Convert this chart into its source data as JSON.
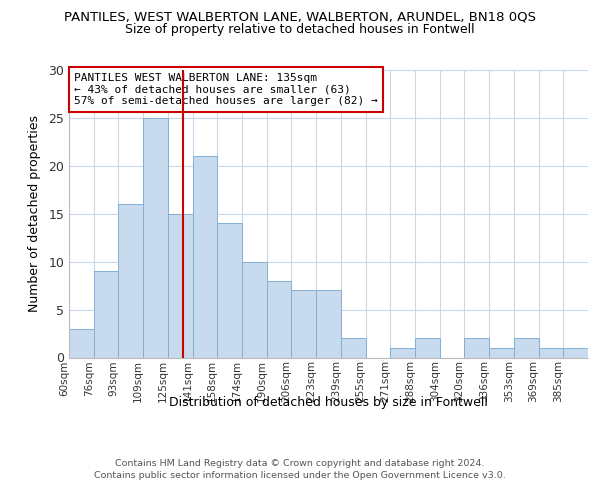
{
  "title1": "PANTILES, WEST WALBERTON LANE, WALBERTON, ARUNDEL, BN18 0QS",
  "title2": "Size of property relative to detached houses in Fontwell",
  "xlabel": "Distribution of detached houses by size in Fontwell",
  "ylabel": "Number of detached properties",
  "bin_labels": [
    "60sqm",
    "76sqm",
    "93sqm",
    "109sqm",
    "125sqm",
    "141sqm",
    "158sqm",
    "174sqm",
    "190sqm",
    "206sqm",
    "223sqm",
    "239sqm",
    "255sqm",
    "271sqm",
    "288sqm",
    "304sqm",
    "320sqm",
    "336sqm",
    "353sqm",
    "369sqm",
    "385sqm"
  ],
  "bar_heights": [
    3,
    9,
    16,
    25,
    15,
    21,
    14,
    10,
    8,
    7,
    7,
    2,
    0,
    1,
    2,
    0,
    2,
    1,
    2,
    1,
    1
  ],
  "bar_color": "#c8daed",
  "bar_edge_color": "#85afd4",
  "grid_color": "#c8d8e8",
  "vline_x_index": 4.55,
  "vline_color": "#cc0000",
  "annotation_line1": "PANTILES WEST WALBERTON LANE: 135sqm",
  "annotation_line2": "← 43% of detached houses are smaller (63)",
  "annotation_line3": "57% of semi-detached houses are larger (82) →",
  "annotation_box_color": "#ffffff",
  "annotation_box_edge": "#cc0000",
  "ylim": [
    0,
    30
  ],
  "yticks": [
    0,
    5,
    10,
    15,
    20,
    25,
    30
  ],
  "bin_edges": [
    60,
    76,
    93,
    109,
    125,
    141,
    158,
    174,
    190,
    206,
    223,
    239,
    255,
    271,
    288,
    304,
    320,
    336,
    353,
    369,
    385,
    401
  ],
  "footer1": "Contains HM Land Registry data © Crown copyright and database right 2024.",
  "footer2": "Contains public sector information licensed under the Open Government Licence v3.0.",
  "bg_color": "#f0f4f8"
}
